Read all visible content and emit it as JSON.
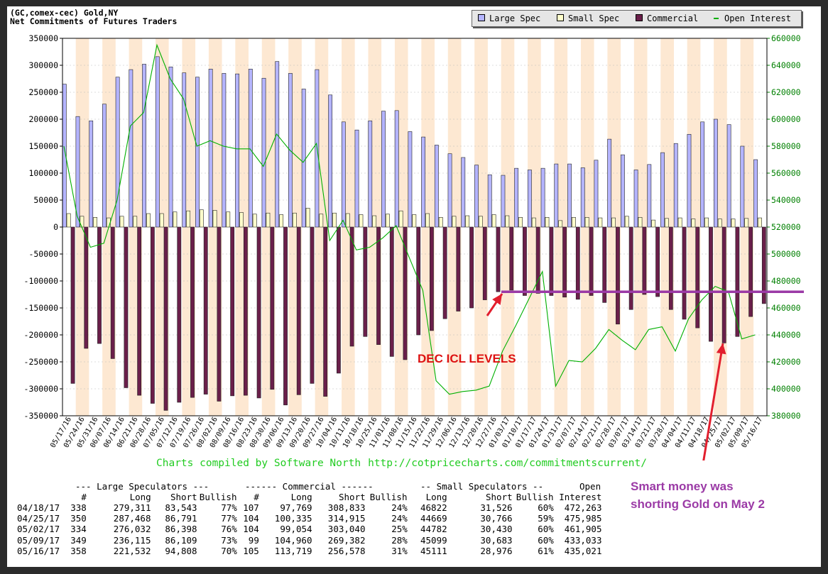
{
  "header": {
    "title_line1": "(GC,comex-cec) Gold,NY",
    "title_line2": "Net Commitments of Futures Traders"
  },
  "legend": [
    {
      "label": "Large Spec",
      "color": "#b4b4ff",
      "kind": "box"
    },
    {
      "label": "Small Spec",
      "color": "#ffffcc",
      "kind": "box"
    },
    {
      "label": "Commercial",
      "color": "#6a1f4a",
      "kind": "box"
    },
    {
      "label": "Open Interest",
      "color": "#00b000",
      "kind": "line"
    }
  ],
  "colors": {
    "band_odd": "#fde8d2",
    "band_even": "#ffffff",
    "large_spec": "#b4b4ff",
    "small_spec": "#ffffcc",
    "commercial": "#6a1f4a",
    "open_interest": "#00b000",
    "icl_line": "#9b3aa6",
    "arrow": "#e21f2e"
  },
  "chart_data": {
    "type": "bar",
    "title": "(GC,comex-cec) Gold,NY",
    "subtitle": "Net Commitments of Futures Traders",
    "ylim": [
      -350000,
      350000
    ],
    "y2lim": [
      380000,
      660000
    ],
    "yticks": [
      "350000",
      "300000",
      "250000",
      "200000",
      "150000",
      "100000",
      "50000",
      "0",
      "-50000",
      "-100000",
      "-150000",
      "-200000",
      "-250000",
      "-300000",
      "-350000"
    ],
    "y2ticks": [
      "660000",
      "640000",
      "620000",
      "600000",
      "580000",
      "560000",
      "540000",
      "520000",
      "500000",
      "480000",
      "460000",
      "440000",
      "420000",
      "400000",
      "380000"
    ],
    "grid": true,
    "legend_position": "top-right",
    "categories": [
      "05/17/16",
      "05/24/16",
      "05/31/16",
      "06/07/16",
      "06/14/16",
      "06/21/16",
      "06/28/16",
      "07/05/16",
      "07/12/16",
      "07/19/16",
      "07/26/16",
      "08/02/16",
      "08/09/16",
      "08/16/16",
      "08/23/16",
      "08/30/16",
      "09/06/16",
      "09/13/16",
      "09/20/16",
      "09/27/16",
      "10/04/16",
      "10/11/16",
      "10/18/16",
      "10/25/16",
      "11/01/16",
      "11/08/16",
      "11/15/16",
      "11/22/16",
      "11/29/16",
      "12/06/16",
      "12/13/16",
      "12/20/16",
      "12/27/16",
      "01/03/17",
      "01/10/17",
      "01/17/17",
      "01/24/17",
      "01/31/17",
      "02/07/17",
      "02/14/17",
      "02/21/17",
      "02/28/17",
      "03/07/17",
      "03/14/17",
      "03/21/17",
      "03/28/17",
      "04/04/17",
      "04/11/17",
      "04/18/17",
      "04/25/17",
      "05/02/17",
      "05/09/17",
      "05/16/17"
    ],
    "series": [
      {
        "name": "Large Spec",
        "axis": "left",
        "values": [
          265000,
          205000,
          197000,
          228000,
          278000,
          292000,
          302000,
          316000,
          297000,
          286000,
          278000,
          293000,
          285000,
          284000,
          293000,
          276000,
          307000,
          285000,
          256000,
          292000,
          245000,
          195000,
          180000,
          197000,
          215000,
          216000,
          177000,
          167000,
          152000,
          136000,
          129000,
          115000,
          97000,
          96000,
          109000,
          106000,
          109000,
          117000,
          117000,
          110000,
          124000,
          163000,
          134000,
          106000,
          116000,
          138000,
          155000,
          172000,
          195000,
          200000,
          190000,
          150000,
          125000
        ]
      },
      {
        "name": "Small Spec",
        "axis": "left",
        "values": [
          25000,
          20000,
          18000,
          17000,
          20000,
          20000,
          25000,
          25000,
          28000,
          30000,
          32000,
          31000,
          28000,
          27000,
          24000,
          26000,
          23000,
          26000,
          35000,
          24000,
          26000,
          25000,
          23000,
          21000,
          24000,
          30000,
          23000,
          25000,
          18000,
          20000,
          21000,
          20000,
          23000,
          21000,
          18000,
          17000,
          18000,
          12000,
          18000,
          18000,
          17000,
          17000,
          20000,
          18000,
          13000,
          16000,
          17000,
          15000,
          17000,
          15000,
          15000,
          16000,
          17000
        ]
      },
      {
        "name": "Commercial",
        "axis": "left",
        "values": [
          -290000,
          -225000,
          -216000,
          -244000,
          -298000,
          -312000,
          -327000,
          -340000,
          -325000,
          -316000,
          -310000,
          -323000,
          -313000,
          -312000,
          -317000,
          -301000,
          -330000,
          -311000,
          -290000,
          -314000,
          -271000,
          -221000,
          -203000,
          -218000,
          -240000,
          -246000,
          -200000,
          -192000,
          -170000,
          -156000,
          -150000,
          -135000,
          -120000,
          -117000,
          -127000,
          -123000,
          -127000,
          -130000,
          -134000,
          -127000,
          -140000,
          -180000,
          -153000,
          -125000,
          -129000,
          -153000,
          -171000,
          -187000,
          -212000,
          -215000,
          -203000,
          -166000,
          -142000
        ]
      },
      {
        "name": "Open Interest",
        "axis": "right",
        "values": [
          580000,
          528000,
          505000,
          508000,
          540000,
          595000,
          605000,
          655000,
          630000,
          615000,
          580000,
          584000,
          580000,
          578000,
          578000,
          565000,
          589000,
          577000,
          568000,
          582000,
          510000,
          525000,
          503000,
          505000,
          512000,
          521000,
          497000,
          473000,
          406000,
          396000,
          398000,
          399000,
          402000,
          428000,
          447000,
          467000,
          487000,
          402000,
          421000,
          420000,
          430000,
          444000,
          436000,
          429000,
          444000,
          446000,
          428000,
          452000,
          466000,
          476000,
          472000,
          437000,
          440000
        ]
      }
    ]
  },
  "credit": {
    "text": "Charts compiled by Software North",
    "url": "http://cotpricecharts.com/commitmentscurrent/"
  },
  "annotations": {
    "dec_label": "DEC ICL LEVELS",
    "icl_level": -120000,
    "smart_line1": "Smart money was",
    "smart_line2": "shorting Gold on May 2"
  },
  "table": {
    "group_headers": [
      "--- Large Speculators ---",
      "------ Commercial ------",
      "-- Small Speculators --",
      "Open"
    ],
    "col_headers": [
      "#",
      "Long",
      "Short",
      "Bullish",
      "#",
      "Long",
      "Short",
      "Bullish",
      "Long",
      "Short",
      "Bullish",
      "Interest"
    ],
    "rows": [
      [
        "04/18/17",
        "338",
        "279,311",
        "83,543",
        "77%",
        "107",
        "97,769",
        "308,833",
        "24%",
        "46822",
        "31,526",
        "60%",
        "472,263"
      ],
      [
        "04/25/17",
        "350",
        "287,468",
        "86,791",
        "77%",
        "104",
        "100,335",
        "314,915",
        "24%",
        "44669",
        "30,766",
        "59%",
        "475,985"
      ],
      [
        "05/02/17",
        "334",
        "276,032",
        "86,398",
        "76%",
        "104",
        "99,054",
        "303,040",
        "25%",
        "44782",
        "30,430",
        "60%",
        "461,905"
      ],
      [
        "05/09/17",
        "349",
        "236,115",
        "86,109",
        "73%",
        "99",
        "104,960",
        "269,382",
        "28%",
        "45099",
        "30,683",
        "60%",
        "433,033"
      ],
      [
        "05/16/17",
        "358",
        "221,532",
        "94,808",
        "70%",
        "105",
        "113,719",
        "256,578",
        "31%",
        "45111",
        "28,976",
        "61%",
        "435,021"
      ]
    ]
  }
}
